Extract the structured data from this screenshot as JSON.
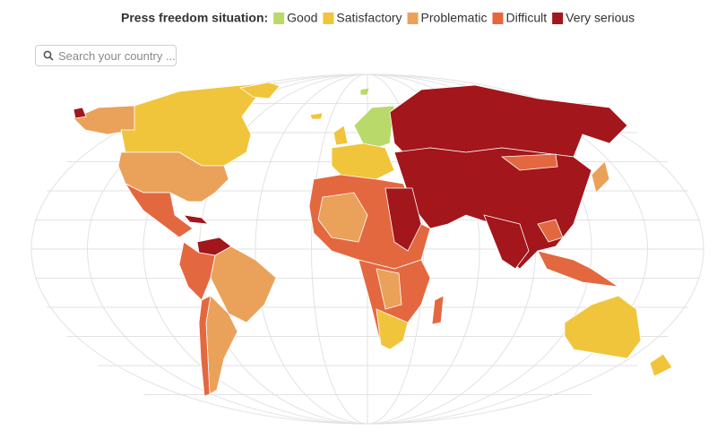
{
  "legend": {
    "title": "Press freedom situation:",
    "items": [
      {
        "label": "Good",
        "color": "#b9d96b"
      },
      {
        "label": "Satisfactory",
        "color": "#f0c53c"
      },
      {
        "label": "Problematic",
        "color": "#eaa15a"
      },
      {
        "label": "Difficult",
        "color": "#e4683f"
      },
      {
        "label": "Very serious",
        "color": "#a3161b"
      }
    ]
  },
  "search": {
    "placeholder": "Search your country ..."
  }
}
